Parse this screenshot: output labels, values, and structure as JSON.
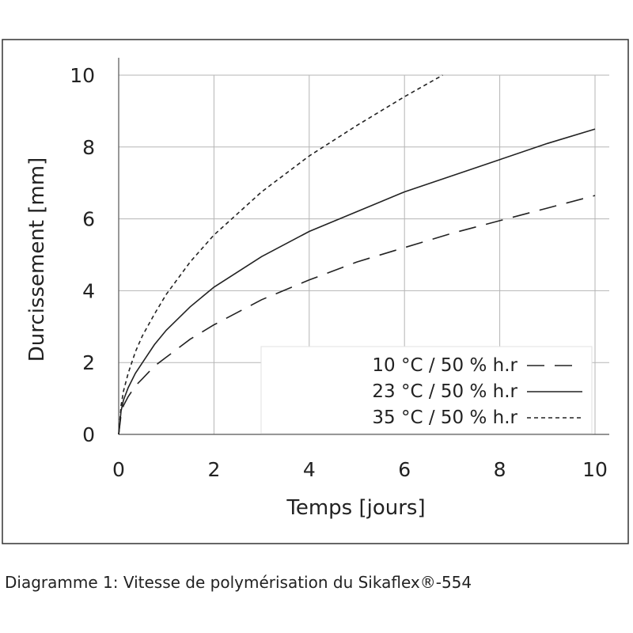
{
  "chart_data": {
    "type": "line",
    "xlabel": "Temps [jours]",
    "ylabel": "Durcissement [mm]",
    "xlim": [
      0,
      10
    ],
    "ylim": [
      0,
      10
    ],
    "x_ticks": [
      "0",
      "2",
      "4",
      "6",
      "8",
      "10"
    ],
    "y_ticks": [
      "0",
      "2",
      "4",
      "6",
      "8",
      "10"
    ],
    "grid": true,
    "legend_position": "bottom-right",
    "series": [
      {
        "name": "10 °C / 50 % h.r",
        "style": "long-dash",
        "x": [
          0,
          0.05,
          0.1,
          0.2,
          0.35,
          0.5,
          0.75,
          1,
          1.5,
          2,
          3,
          4,
          5,
          6,
          7,
          8,
          9,
          10
        ],
        "y": [
          0,
          0.55,
          0.8,
          1.05,
          1.35,
          1.55,
          1.9,
          2.15,
          2.65,
          3.05,
          3.75,
          4.3,
          4.8,
          5.2,
          5.6,
          5.95,
          6.3,
          6.65
        ]
      },
      {
        "name": "23 °C / 50 % h.r",
        "style": "solid",
        "x": [
          0,
          0.05,
          0.1,
          0.2,
          0.35,
          0.5,
          0.75,
          1,
          1.5,
          2,
          3,
          4,
          5,
          6,
          7,
          8,
          9,
          10
        ],
        "y": [
          0,
          0.65,
          0.95,
          1.3,
          1.7,
          2.0,
          2.5,
          2.9,
          3.55,
          4.1,
          4.95,
          5.65,
          6.2,
          6.75,
          7.2,
          7.65,
          8.1,
          8.5
        ]
      },
      {
        "name": "35 °C / 50 % h.r",
        "style": "short-dash",
        "x": [
          0,
          0.05,
          0.1,
          0.2,
          0.35,
          0.5,
          0.75,
          1,
          1.5,
          2,
          3,
          4,
          5,
          6,
          6.8
        ],
        "y": [
          0,
          0.8,
          1.2,
          1.7,
          2.3,
          2.75,
          3.35,
          3.9,
          4.8,
          5.55,
          6.75,
          7.75,
          8.6,
          9.4,
          10
        ]
      }
    ]
  },
  "caption": "Diagramme 1: Vitesse de polymérisation du Sikaflex®-554"
}
